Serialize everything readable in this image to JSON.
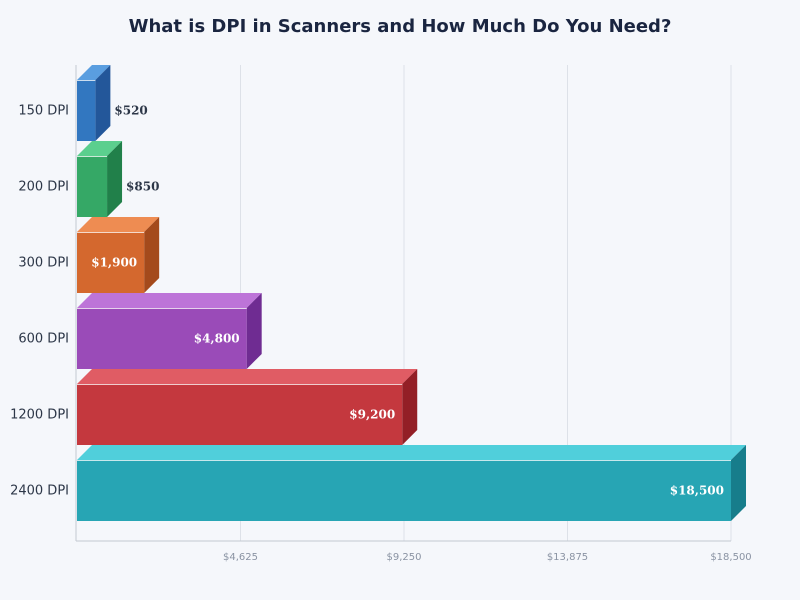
{
  "title": "What is DPI in Scanners and How Much Do You Need?",
  "chart_data": {
    "type": "bar",
    "orientation": "horizontal",
    "style": "3d",
    "title": "What is DPI in Scanners and How Much Do You Need?",
    "xlabel": "",
    "ylabel": "",
    "categories": [
      "150 DPI",
      "200 DPI",
      "300 DPI",
      "600 DPI",
      "1200 DPI",
      "2400 DPI"
    ],
    "values": [
      520,
      850,
      1900,
      4800,
      9200,
      18500
    ],
    "value_labels": [
      "$520",
      "$850",
      "$1,900",
      "$4,800",
      "$9,200",
      "$18,500"
    ],
    "colors": [
      "#3277c0",
      "#35a866",
      "#d4682e",
      "#9a4bb8",
      "#c4383e",
      "#27a5b4"
    ],
    "top_colors": [
      "#5a9ee0",
      "#5bcf8e",
      "#ee8c52",
      "#bd74d8",
      "#e05c64",
      "#50cfdb"
    ],
    "side_colors": [
      "#23579a",
      "#21804a",
      "#a44a1c",
      "#6f2c92",
      "#931f26",
      "#177d8b"
    ],
    "xlim": [
      0,
      18500
    ],
    "xticks": [
      4625,
      9250,
      13875,
      18500
    ],
    "xtick_labels": [
      "$4,625",
      "$9,250",
      "$13,875",
      "$18,500"
    ],
    "grid": true,
    "legend": null
  }
}
